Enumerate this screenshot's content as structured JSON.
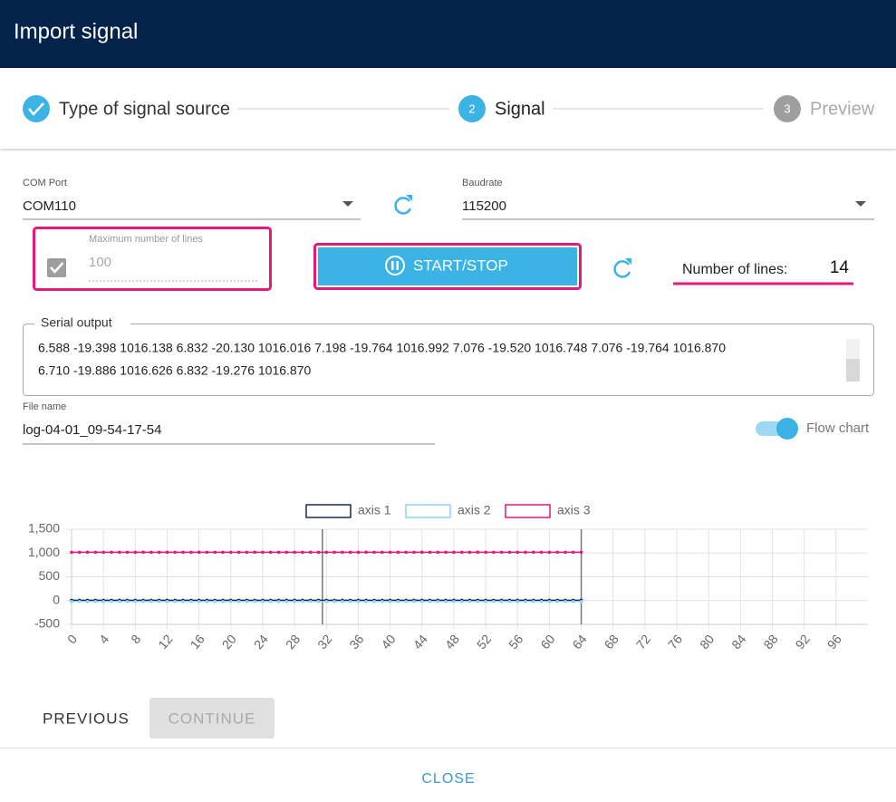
{
  "header": {
    "title": "Import signal"
  },
  "stepper": {
    "steps": [
      {
        "label": "Type of signal source"
      },
      {
        "number": "2",
        "label": "Signal"
      },
      {
        "number": "3",
        "label": "Preview"
      }
    ]
  },
  "form": {
    "com_port": {
      "label": "COM Port",
      "value": "COM110"
    },
    "baudrate": {
      "label": "Baudrate",
      "value": "115200"
    },
    "max_lines": {
      "label": "Maximum number of lines",
      "value": "100"
    },
    "start_stop": "START/STOP",
    "number_of_lines": {
      "label": "Number of lines:",
      "value": 14
    },
    "serial_output": {
      "label": "Serial output",
      "lines": [
        "6.588 -19.398 1016.138 6.832 -20.130 1016.016 7.198 -19.764 1016.992 7.076 -19.520 1016.748 7.076 -19.764 1016.870",
        "6.710 -19.886 1016.626 6.832 -19.276 1016.870"
      ]
    },
    "file_name": {
      "label": "File name",
      "value": "log-04-01_09-54-17-54"
    },
    "flow_chart": {
      "label": "Flow chart"
    }
  },
  "chart_data": {
    "type": "line",
    "x": [
      0,
      1,
      2,
      3,
      4,
      5,
      6,
      7,
      8,
      9,
      10,
      11,
      12,
      13,
      14,
      15,
      16,
      17,
      18,
      19,
      20,
      21,
      22,
      23,
      24,
      25,
      26,
      27,
      28,
      29,
      30,
      31,
      32,
      33,
      34,
      35,
      36,
      37,
      38,
      39,
      40,
      41,
      42,
      43,
      44,
      45,
      46,
      47,
      48,
      49,
      50,
      51,
      52,
      53,
      54,
      55,
      56,
      57,
      58,
      59,
      60,
      61,
      62,
      63,
      64
    ],
    "series": [
      {
        "name": "axis 1",
        "color": "#1b2a5c",
        "values": [
          6.588,
          6.832,
          7.198,
          7.076,
          7.076,
          6.71,
          6.832,
          6.588,
          6.832,
          7.198,
          7.076,
          7.076,
          6.71,
          6.832,
          6.588,
          6.832,
          7.198,
          7.076,
          7.076,
          6.71,
          6.832,
          6.588,
          6.832,
          7.198,
          7.076,
          7.076,
          6.71,
          6.832,
          6.588,
          6.832,
          7.198,
          7.076,
          7.076,
          6.71,
          6.832,
          6.588,
          6.832,
          7.198,
          7.076,
          7.076,
          6.71,
          6.832,
          6.588,
          6.832,
          7.198,
          7.076,
          7.076,
          6.71,
          6.832,
          6.588,
          6.832,
          7.198,
          7.076,
          7.076,
          6.71,
          6.832,
          6.588,
          6.832,
          7.198,
          7.076,
          7.076,
          6.71,
          6.832,
          6.588,
          6.832
        ]
      },
      {
        "name": "axis 2",
        "color": "#8fd3ef",
        "values": [
          -19.398,
          -20.13,
          -19.764,
          -19.52,
          -19.764,
          -19.886,
          -19.276,
          -19.398,
          -20.13,
          -19.764,
          -19.52,
          -19.764,
          -19.886,
          -19.276,
          -19.398,
          -20.13,
          -19.764,
          -19.52,
          -19.764,
          -19.886,
          -19.276,
          -19.398,
          -20.13,
          -19.764,
          -19.52,
          -19.764,
          -19.886,
          -19.276,
          -19.398,
          -20.13,
          -19.764,
          -19.52,
          -19.764,
          -19.886,
          -19.276,
          -19.398,
          -20.13,
          -19.764,
          -19.52,
          -19.764,
          -19.886,
          -19.276,
          -19.398,
          -20.13,
          -19.764,
          -19.52,
          -19.764,
          -19.886,
          -19.276,
          -19.398,
          -20.13,
          -19.764,
          -19.52,
          -19.764,
          -19.886,
          -19.276,
          -19.398,
          -20.13,
          -19.764,
          -19.52,
          -19.764,
          -19.886,
          -19.276,
          -19.398,
          -20.13
        ]
      },
      {
        "name": "axis 3",
        "color": "#e0197a",
        "values": [
          1016.138,
          1016.016,
          1016.992,
          1016.748,
          1016.87,
          1016.626,
          1016.87,
          1016.138,
          1016.016,
          1016.992,
          1016.748,
          1016.87,
          1016.626,
          1016.87,
          1016.138,
          1016.016,
          1016.992,
          1016.748,
          1016.87,
          1016.626,
          1016.87,
          1016.138,
          1016.016,
          1016.992,
          1016.748,
          1016.87,
          1016.626,
          1016.87,
          1016.138,
          1016.016,
          1016.992,
          1016.748,
          1016.87,
          1016.626,
          1016.87,
          1016.138,
          1016.016,
          1016.992,
          1016.748,
          1016.87,
          1016.626,
          1016.87,
          1016.138,
          1016.016,
          1016.992,
          1016.748,
          1016.87,
          1016.626,
          1016.87,
          1016.138,
          1016.016,
          1016.992,
          1016.748,
          1016.87,
          1016.626,
          1016.87,
          1016.138,
          1016.016,
          1016.992,
          1016.748,
          1016.87,
          1016.626,
          1016.87,
          1016.138,
          1016.016
        ]
      }
    ],
    "markers_x": [
      31.5,
      64
    ],
    "xlim": [
      0,
      100
    ],
    "xticks": [
      0,
      4,
      8,
      12,
      16,
      20,
      24,
      28,
      32,
      36,
      40,
      44,
      48,
      52,
      56,
      60,
      64,
      68,
      72,
      76,
      80,
      84,
      88,
      92,
      96
    ],
    "ylim": [
      -500,
      1500
    ],
    "yticks": [
      {
        "value": 1500,
        "label": "1,500"
      },
      {
        "value": 1000,
        "label": "1,000"
      },
      500,
      0,
      -500
    ],
    "grid": true
  },
  "footer": {
    "previous": "PREVIOUS",
    "continue": "CONTINUE",
    "close": "CLOSE"
  }
}
